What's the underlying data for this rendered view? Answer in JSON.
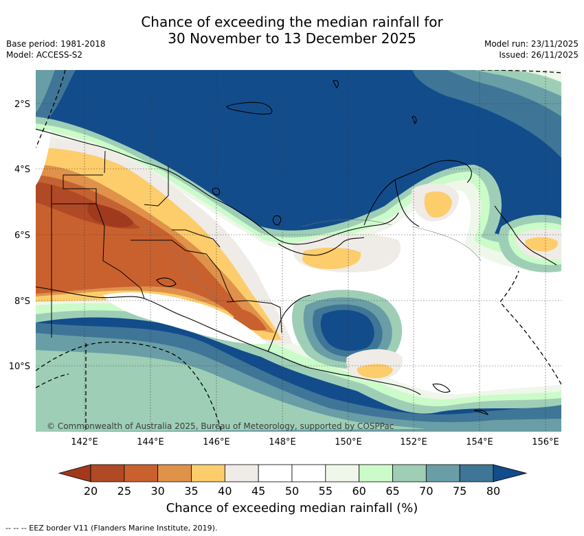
{
  "title": {
    "line1": "Chance of exceeding the median rainfall for",
    "line2": "30 November to 13 December 2025"
  },
  "meta": {
    "base_period": "Base period: 1981-2018",
    "model": "Model: ACCESS-S2",
    "model_run": "Model run: 23/11/2025",
    "issued": "Issued: 26/11/2025"
  },
  "map": {
    "lat_labels": [
      "2°S",
      "4°S",
      "6°S",
      "8°S",
      "10°S"
    ],
    "lon_labels": [
      "142°E",
      "144°E",
      "146°E",
      "148°E",
      "150°E",
      "152°E",
      "154°E",
      "156°E"
    ],
    "copyright": "© Commonwealth of Australia 2025, Bureau of Meteorology, supported by COSPPac"
  },
  "colorbar": {
    "ticks": [
      "20",
      "25",
      "30",
      "35",
      "40",
      "45",
      "50",
      "55",
      "60",
      "65",
      "70",
      "75",
      "80"
    ],
    "colors": [
      "#b04a26",
      "#c9612f",
      "#e0924a",
      "#fdcd6c",
      "#efebe6",
      "#ffffff",
      "#ffffff",
      "#eef7ea",
      "#cbfbc9",
      "#9ecfb6",
      "#6a9ea6",
      "#3f7597"
    ],
    "under_color": "#a0391d",
    "over_color": "#134c8b",
    "title": "Chance of exceeding median rainfall (%)"
  },
  "footer": "--  --  -- EEZ border V11 (Flanders Marine Institute, 2019)."
}
